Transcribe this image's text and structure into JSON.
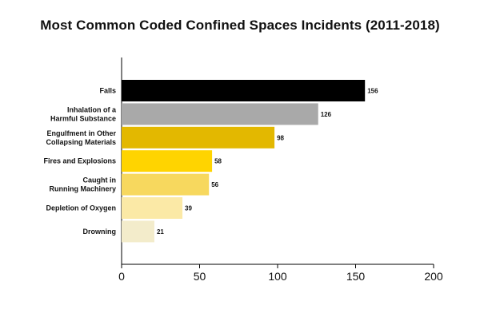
{
  "chart_data": {
    "type": "bar",
    "orientation": "horizontal",
    "title": "Most Common Coded Confined Spaces Incidents (2011-2018)",
    "xlabel": "",
    "ylabel": "",
    "xlim": [
      0,
      200
    ],
    "xticks": [
      0,
      50,
      100,
      150,
      200
    ],
    "grid": false,
    "categories": [
      [
        "Falls"
      ],
      [
        "Inhalation of a",
        "Harmful Substance"
      ],
      [
        "Engulfment in Other",
        "Collapsing Materials"
      ],
      [
        "Fires and Explosions"
      ],
      [
        "Caught in",
        "Running Machinery"
      ],
      [
        "Depletion of Oxygen"
      ],
      [
        "Drowning"
      ]
    ],
    "values": [
      156,
      126,
      98,
      58,
      56,
      39,
      21
    ],
    "colors": [
      "#000000",
      "#a9a9a9",
      "#e3b800",
      "#ffd400",
      "#f7d85e",
      "#fbe9a6",
      "#f3eccb"
    ]
  }
}
